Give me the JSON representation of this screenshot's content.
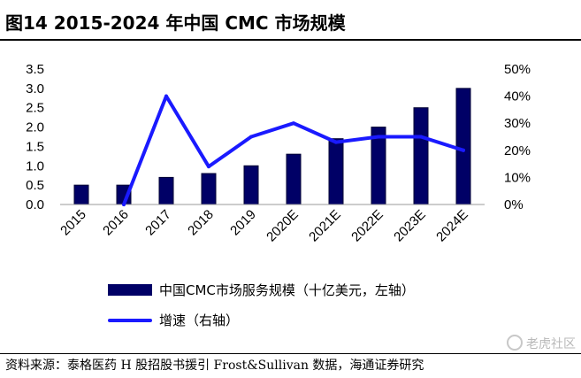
{
  "title": "图14 2015-2024 年中国 CMC 市场规模",
  "source_note": "资料来源：泰格医药 H 股招股书援引 Frost&Sullivan 数据，海通证券研究",
  "watermark": "老虎社区",
  "colors": {
    "bar": "#000066",
    "line": "#1a1aff"
  },
  "chart_data": {
    "type": "bar+line",
    "categories": [
      "2015",
      "2016",
      "2017",
      "2018",
      "2019",
      "2020E",
      "2021E",
      "2022E",
      "2023E",
      "2024E"
    ],
    "series": [
      {
        "name": "中国CMC市场服务规模（十亿美元，左轴）",
        "type": "bar",
        "axis": "left",
        "values": [
          0.5,
          0.5,
          0.7,
          0.8,
          1.0,
          1.3,
          1.7,
          2.0,
          2.5,
          3.0
        ]
      },
      {
        "name": "增速（右轴）",
        "type": "line",
        "axis": "right",
        "values": [
          null,
          0,
          40,
          14,
          25,
          30,
          23,
          25,
          25,
          20
        ]
      }
    ],
    "left_axis": {
      "ylim": [
        0,
        3.5
      ],
      "ticks": [
        "0.0",
        "0.5",
        "1.0",
        "1.5",
        "2.0",
        "2.5",
        "3.0",
        "3.5"
      ]
    },
    "right_axis": {
      "ylim": [
        0,
        50
      ],
      "ticks": [
        "0%",
        "10%",
        "20%",
        "30%",
        "40%",
        "50%"
      ]
    },
    "grid": false,
    "legend_position": "bottom"
  }
}
